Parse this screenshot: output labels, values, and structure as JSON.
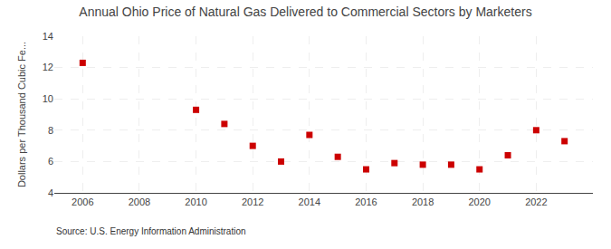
{
  "chart_data": {
    "type": "scatter",
    "title": "Annual Ohio Price of Natural Gas Delivered to Commercial Sectors by Marketers",
    "ylabel": "Dollars per Thousand Cubic Fe...",
    "annotations": [
      "Source: U.S. Energy Information Administration"
    ],
    "x": [
      2006,
      2010,
      2011,
      2012,
      2013,
      2014,
      2015,
      2016,
      2017,
      2018,
      2019,
      2020,
      2021,
      2022,
      2023
    ],
    "values": [
      12.3,
      9.3,
      8.4,
      7.0,
      6.0,
      7.7,
      6.3,
      5.5,
      5.9,
      5.8,
      5.8,
      5.5,
      6.4,
      8.0,
      7.3
    ],
    "color": "#cc0000",
    "marker": "square",
    "xlim": [
      2005.0,
      2024.0
    ],
    "xticks": [
      2006,
      2008,
      2010,
      2012,
      2014,
      2016,
      2018,
      2020,
      2022
    ],
    "ylim": [
      4,
      14
    ],
    "yticks": [
      4,
      6,
      8,
      10,
      12,
      14
    ],
    "grid": true
  }
}
